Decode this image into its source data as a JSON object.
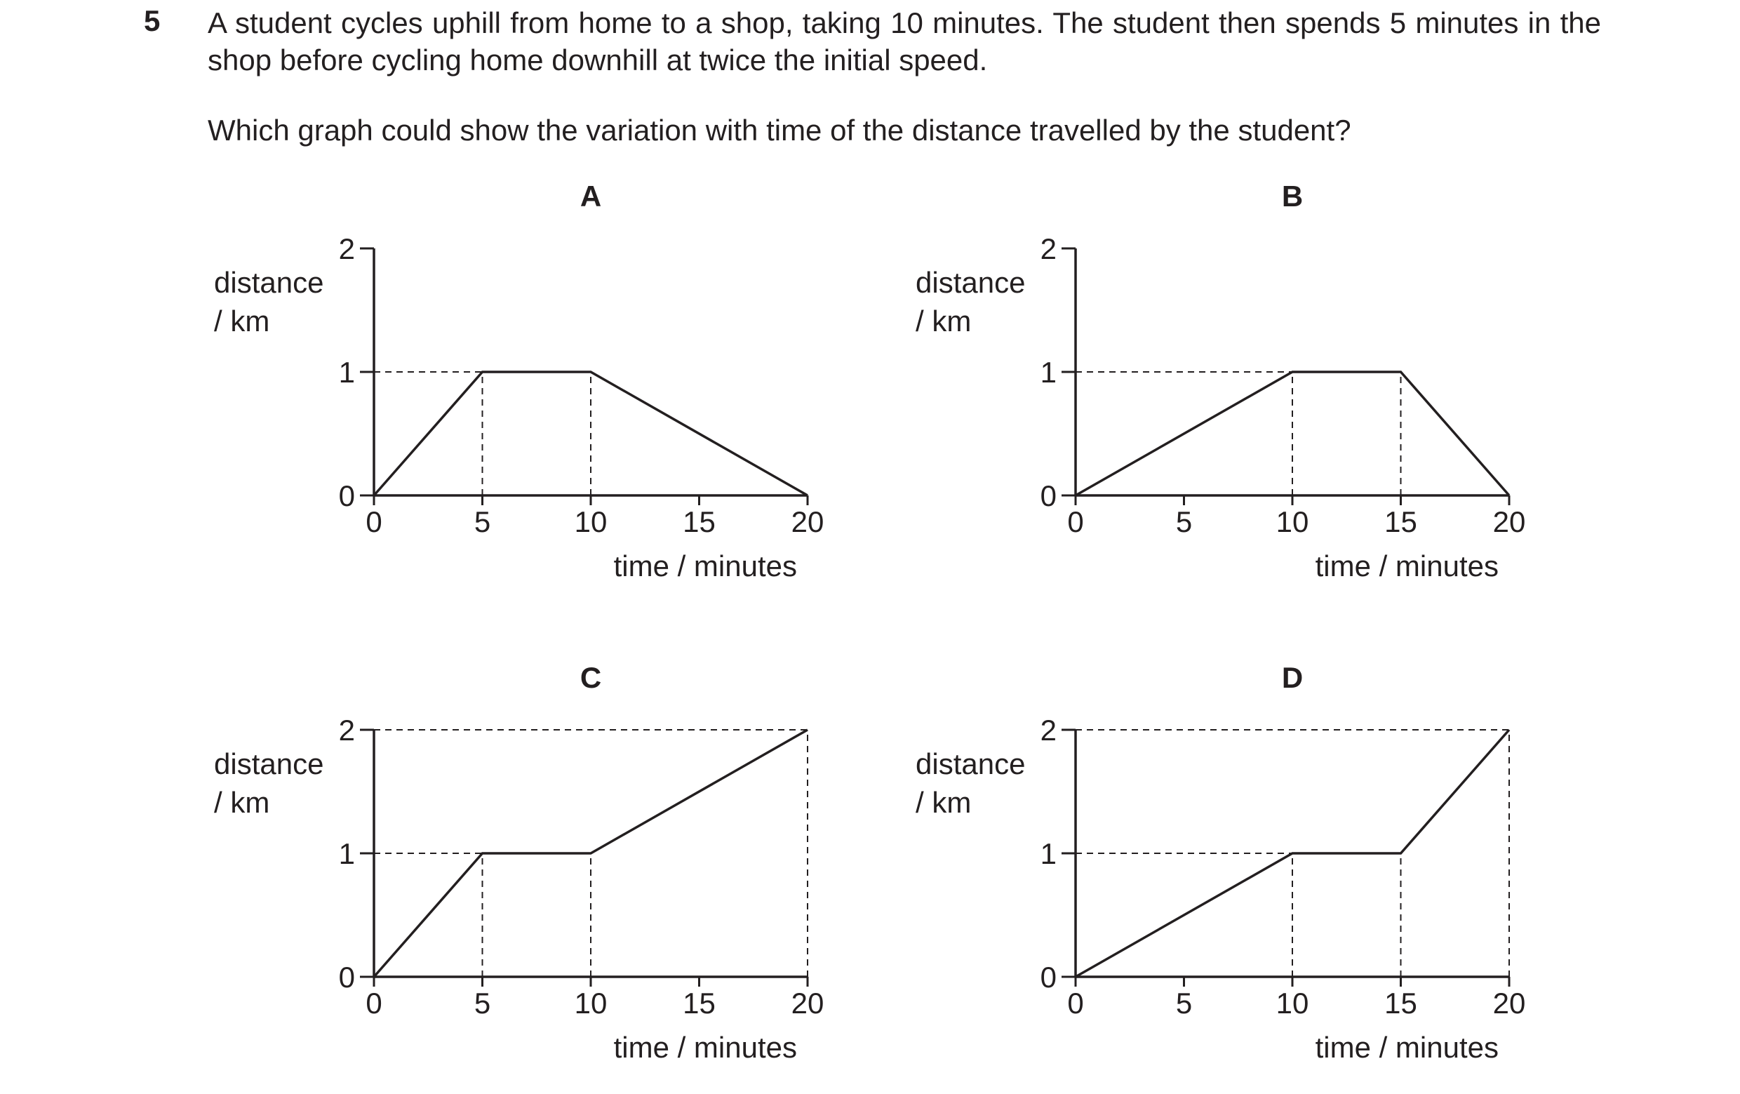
{
  "question": {
    "number": "5",
    "stem": "A student cycles uphill from home to a shop, taking 10 minutes. The student then spends 5 minutes in the shop before cycling home downhill at twice the initial speed.",
    "prompt": "Which graph could show the variation with time of the distance travelled by the student?"
  },
  "chart_data": [
    {
      "type": "line",
      "title": "A",
      "xlabel": "time / minutes",
      "ylabel": [
        "distance",
        "/ km"
      ],
      "xlim": [
        0,
        20
      ],
      "ylim": [
        0,
        2
      ],
      "xticks": [
        0,
        5,
        10,
        15,
        20
      ],
      "yticks": [
        0,
        1,
        2
      ],
      "x": [
        0,
        5,
        10,
        20
      ],
      "y": [
        0,
        1,
        1,
        0
      ],
      "guides": [
        [
          0,
          1,
          5,
          1
        ],
        [
          5,
          0,
          5,
          1
        ],
        [
          10,
          0,
          10,
          1
        ]
      ],
      "grid": false,
      "color": "#231f20"
    },
    {
      "type": "line",
      "title": "B",
      "xlabel": "time / minutes",
      "ylabel": [
        "distance",
        "/ km"
      ],
      "xlim": [
        0,
        20
      ],
      "ylim": [
        0,
        2
      ],
      "xticks": [
        0,
        5,
        10,
        15,
        20
      ],
      "yticks": [
        0,
        1,
        2
      ],
      "x": [
        0,
        10,
        15,
        20
      ],
      "y": [
        0,
        1,
        1,
        0
      ],
      "guides": [
        [
          0,
          1,
          10,
          1
        ],
        [
          10,
          0,
          10,
          1
        ],
        [
          15,
          0,
          15,
          1
        ]
      ],
      "grid": false,
      "color": "#231f20"
    },
    {
      "type": "line",
      "title": "C",
      "xlabel": "time / minutes",
      "ylabel": [
        "distance",
        "/ km"
      ],
      "xlim": [
        0,
        20
      ],
      "ylim": [
        0,
        2
      ],
      "xticks": [
        0,
        5,
        10,
        15,
        20
      ],
      "yticks": [
        0,
        1,
        2
      ],
      "x": [
        0,
        5,
        10,
        20
      ],
      "y": [
        0,
        1,
        1,
        2
      ],
      "guides": [
        [
          0,
          1,
          5,
          1
        ],
        [
          5,
          0,
          5,
          1
        ],
        [
          10,
          0,
          10,
          1
        ],
        [
          0,
          2,
          20,
          2
        ],
        [
          20,
          0,
          20,
          2
        ]
      ],
      "grid": false,
      "color": "#231f20"
    },
    {
      "type": "line",
      "title": "D",
      "xlabel": "time / minutes",
      "ylabel": [
        "distance",
        "/ km"
      ],
      "xlim": [
        0,
        20
      ],
      "ylim": [
        0,
        2
      ],
      "xticks": [
        0,
        5,
        10,
        15,
        20
      ],
      "yticks": [
        0,
        1,
        2
      ],
      "x": [
        0,
        10,
        15,
        20
      ],
      "y": [
        0,
        1,
        1,
        2
      ],
      "guides": [
        [
          0,
          1,
          10,
          1
        ],
        [
          10,
          0,
          10,
          1
        ],
        [
          15,
          0,
          15,
          1
        ],
        [
          0,
          2,
          20,
          2
        ],
        [
          20,
          0,
          20,
          2
        ]
      ],
      "grid": false,
      "color": "#231f20"
    }
  ]
}
